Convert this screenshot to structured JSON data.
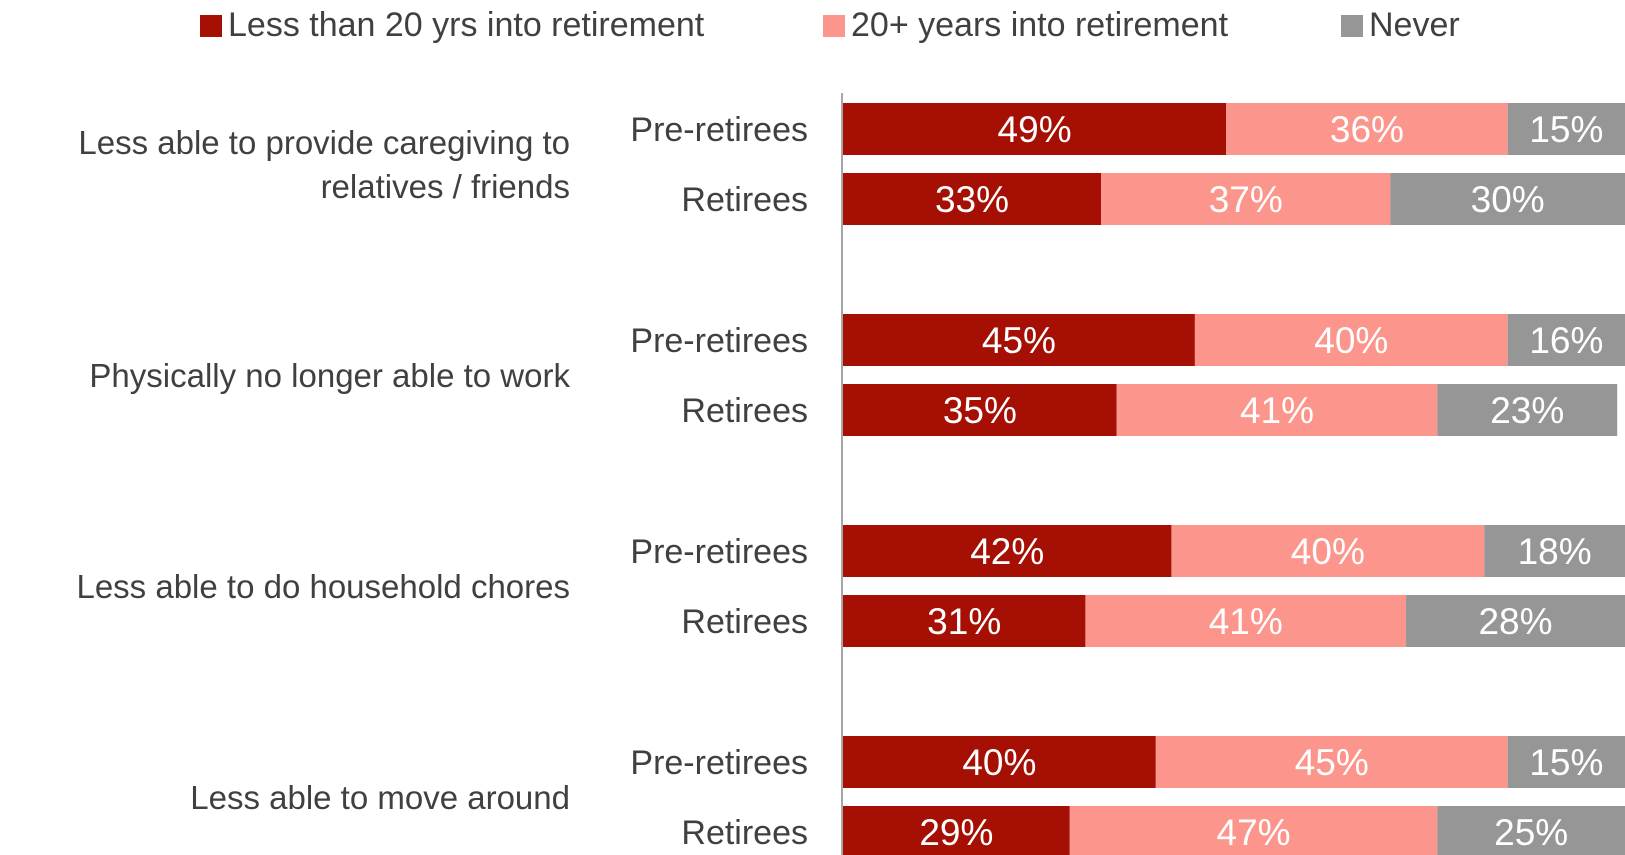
{
  "chart_data": {
    "type": "bar",
    "orientation": "horizontal",
    "stacked": "percent",
    "legend_position": "top",
    "grid": false,
    "xlim": [
      0,
      100
    ],
    "series": [
      {
        "name": "Less than 20 yrs into retirement",
        "color": "#a50f04"
      },
      {
        "name": "20+ years into retirement",
        "color": "#fc958c"
      },
      {
        "name": "Never",
        "color": "#969696"
      }
    ],
    "groups": [
      {
        "label": "Less able to provide caregiving to relatives / friends",
        "bars": [
          {
            "label": "Pre-retirees",
            "values": [
              49,
              36,
              15
            ],
            "data_labels": [
              "49%",
              "36%",
              "15%"
            ]
          },
          {
            "label": "Retirees",
            "values": [
              33,
              37,
              30
            ],
            "data_labels": [
              "33%",
              "37%",
              "30%"
            ]
          }
        ]
      },
      {
        "label": "Physically no longer able  to work",
        "bars": [
          {
            "label": "Pre-retirees",
            "values": [
              45,
              40,
              16
            ],
            "data_labels": [
              "45%",
              "40%",
              "16%"
            ]
          },
          {
            "label": "Retirees",
            "values": [
              35,
              41,
              23
            ],
            "data_labels": [
              "35%",
              "41%",
              "23%"
            ]
          }
        ]
      },
      {
        "label": "Less able to do household chores",
        "bars": [
          {
            "label": "Pre-retirees",
            "values": [
              42,
              40,
              18
            ],
            "data_labels": [
              "42%",
              "40%",
              "18%"
            ]
          },
          {
            "label": "Retirees",
            "values": [
              31,
              41,
              28
            ],
            "data_labels": [
              "31%",
              "41%",
              "28%"
            ]
          }
        ]
      },
      {
        "label": "Less able to move around",
        "bars": [
          {
            "label": "Pre-retirees",
            "values": [
              40,
              45,
              15
            ],
            "data_labels": [
              "40%",
              "45%",
              "15%"
            ]
          },
          {
            "label": "Retirees",
            "values": [
              29,
              47,
              25
            ],
            "data_labels": [
              "29%",
              "47%",
              "25%"
            ]
          }
        ]
      }
    ]
  }
}
